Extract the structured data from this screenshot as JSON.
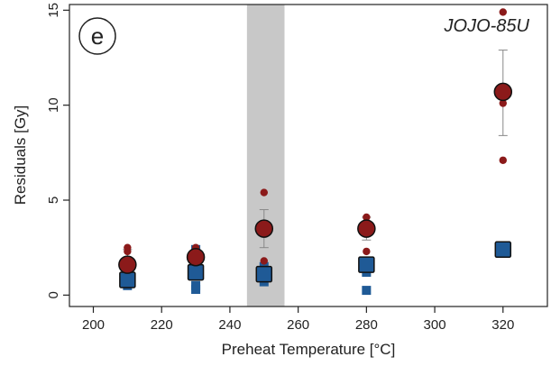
{
  "chart_data": {
    "type": "scatter",
    "title": "",
    "panel_label": "e",
    "sample_label": "JOJO-85U",
    "xlabel": "Preheat Temperature [°C]",
    "ylabel": "Residuals [Gy]",
    "xlim": [
      193,
      333
    ],
    "ylim": [
      -0.6,
      15.3
    ],
    "xticks": [
      200,
      220,
      240,
      260,
      280,
      300,
      320
    ],
    "yticks": [
      0,
      5,
      10,
      15
    ],
    "grid": false,
    "legend": "none",
    "highlight_band": {
      "x_from": 245,
      "x_to": 256,
      "color": "#c8c8c8"
    },
    "colors": {
      "red_series": "#8b1a1a",
      "blue_series": "#1f5a96",
      "error_bar": "#888888",
      "axis": "#222222"
    },
    "series": [
      {
        "marker": "square",
        "color": "#1f5a96",
        "points": [
          {
            "x": 210,
            "y": 0.8
          },
          {
            "x": 230,
            "y": 1.2
          },
          {
            "x": 250,
            "y": 1.1
          },
          {
            "x": 280,
            "y": 1.6
          },
          {
            "x": 320,
            "y": 2.4
          }
        ],
        "aliquots": [
          {
            "x": 210,
            "y": 0.5
          },
          {
            "x": 210,
            "y": 0.6
          },
          {
            "x": 210,
            "y": 0.9
          },
          {
            "x": 210,
            "y": 1.1
          },
          {
            "x": 230,
            "y": 0.3
          },
          {
            "x": 230,
            "y": 0.5
          },
          {
            "x": 230,
            "y": 1.0
          },
          {
            "x": 230,
            "y": 2.2
          },
          {
            "x": 230,
            "y": 2.4
          },
          {
            "x": 250,
            "y": 0.7
          },
          {
            "x": 250,
            "y": 0.9
          },
          {
            "x": 250,
            "y": 1.3
          },
          {
            "x": 250,
            "y": 1.5
          },
          {
            "x": 280,
            "y": 0.25
          },
          {
            "x": 280,
            "y": 1.2
          },
          {
            "x": 280,
            "y": 3.4
          },
          {
            "x": 320,
            "y": 2.3
          },
          {
            "x": 320,
            "y": 2.5
          }
        ]
      },
      {
        "marker": "circle",
        "color": "#8b1a1a",
        "points": [
          {
            "x": 210,
            "y": 1.6,
            "err_low": 0.9,
            "err_high": 2.4
          },
          {
            "x": 230,
            "y": 2.0,
            "err_low": 1.4,
            "err_high": 2.6
          },
          {
            "x": 250,
            "y": 3.5,
            "err_low": 2.5,
            "err_high": 4.5
          },
          {
            "x": 280,
            "y": 3.5,
            "err_low": 2.9,
            "err_high": 4.1
          },
          {
            "x": 320,
            "y": 10.7,
            "err_low": 8.4,
            "err_high": 12.9
          }
        ],
        "aliquots": [
          {
            "x": 210,
            "y": 0.8
          },
          {
            "x": 210,
            "y": 1.5
          },
          {
            "x": 210,
            "y": 2.3
          },
          {
            "x": 210,
            "y": 2.5
          },
          {
            "x": 230,
            "y": 1.5
          },
          {
            "x": 230,
            "y": 2.1
          },
          {
            "x": 230,
            "y": 2.5
          },
          {
            "x": 250,
            "y": 1.8
          },
          {
            "x": 250,
            "y": 3.4
          },
          {
            "x": 250,
            "y": 5.4
          },
          {
            "x": 280,
            "y": 2.3
          },
          {
            "x": 280,
            "y": 3.5
          },
          {
            "x": 280,
            "y": 4.1
          },
          {
            "x": 320,
            "y": 7.1
          },
          {
            "x": 320,
            "y": 10.1
          },
          {
            "x": 320,
            "y": 14.9
          }
        ]
      }
    ]
  }
}
